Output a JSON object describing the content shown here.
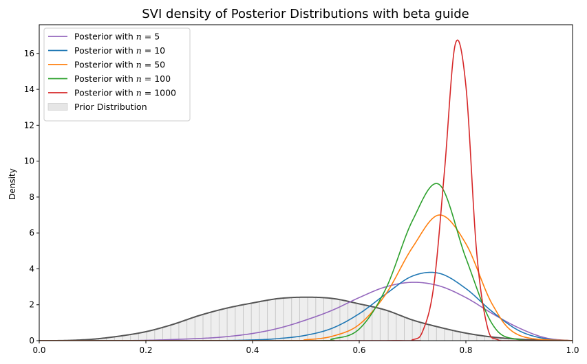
{
  "chart_data": {
    "type": "line",
    "title": "SVI density of Posterior Distributions with beta guide",
    "xlabel": "",
    "ylabel": "Density",
    "xlim": [
      0.0,
      1.0
    ],
    "ylim": [
      0,
      17.6
    ],
    "x_ticks": [
      0.0,
      0.2,
      0.4,
      0.6,
      0.8,
      1.0
    ],
    "x_tick_labels": [
      "0.0",
      "0.2",
      "0.4",
      "0.6",
      "0.8",
      "1.0"
    ],
    "y_ticks": [
      0,
      2,
      4,
      6,
      8,
      10,
      12,
      14,
      16
    ],
    "y_tick_labels": [
      "0",
      "2",
      "4",
      "6",
      "8",
      "10",
      "12",
      "14",
      "16"
    ],
    "legend_position": "top-left",
    "legend": [
      {
        "label": "Posterior with n = 5",
        "text_prefix": "Posterior with ",
        "math": "n",
        "text_suffix": " = 5",
        "color": "#9467bd",
        "kind": "line"
      },
      {
        "label": "Posterior with n = 10",
        "text_prefix": "Posterior with ",
        "math": "n",
        "text_suffix": " = 10",
        "color": "#1f77b4",
        "kind": "line"
      },
      {
        "label": "Posterior with n = 50",
        "text_prefix": "Posterior with ",
        "math": "n",
        "text_suffix": " = 50",
        "color": "#ff7f0e",
        "kind": "line"
      },
      {
        "label": "Posterior with n = 100",
        "text_prefix": "Posterior with ",
        "math": "n",
        "text_suffix": " = 100",
        "color": "#2ca02c",
        "kind": "line"
      },
      {
        "label": "Posterior with n = 1000",
        "text_prefix": "Posterior with ",
        "math": "n",
        "text_suffix": " = 1000",
        "color": "#d62728",
        "kind": "line"
      },
      {
        "label": "Prior Distribution",
        "text_prefix": "Prior Distribution",
        "math": "",
        "text_suffix": "",
        "color": "#e6e6e6",
        "kind": "patch"
      }
    ],
    "prior": {
      "name": "Prior Distribution",
      "fill_color": "#eeeeee",
      "line_color": "#555555",
      "hatch_color": "#c8c8c8",
      "x": [
        0.0,
        0.05,
        0.1,
        0.15,
        0.2,
        0.25,
        0.3,
        0.35,
        0.4,
        0.45,
        0.5,
        0.55,
        0.6,
        0.65,
        0.7,
        0.75,
        0.8,
        0.85,
        0.9,
        0.95,
        1.0
      ],
      "y": [
        0.0,
        0.01,
        0.08,
        0.25,
        0.5,
        0.9,
        1.4,
        1.8,
        2.1,
        2.35,
        2.42,
        2.35,
        2.05,
        1.7,
        1.15,
        0.75,
        0.42,
        0.2,
        0.08,
        0.02,
        0.0
      ]
    },
    "series": [
      {
        "name": "Posterior with n = 5",
        "color": "#9467bd",
        "peak_x": 0.69,
        "peak_y": 3.25,
        "x": [
          0.0,
          0.1,
          0.2,
          0.3,
          0.35,
          0.4,
          0.45,
          0.5,
          0.55,
          0.6,
          0.65,
          0.7,
          0.75,
          0.8,
          0.85,
          0.9,
          0.95,
          1.0
        ],
        "y": [
          0.0,
          0.0,
          0.02,
          0.12,
          0.22,
          0.4,
          0.7,
          1.15,
          1.7,
          2.4,
          3.0,
          3.25,
          3.05,
          2.4,
          1.5,
          0.7,
          0.15,
          0.0
        ]
      },
      {
        "name": "Posterior with n = 10",
        "color": "#1f77b4",
        "peak_x": 0.72,
        "peak_y": 3.85,
        "x": [
          0.0,
          0.3,
          0.4,
          0.45,
          0.5,
          0.55,
          0.6,
          0.65,
          0.7,
          0.75,
          0.8,
          0.85,
          0.9,
          0.95,
          1.0
        ],
        "y": [
          0.0,
          0.0,
          0.04,
          0.12,
          0.3,
          0.7,
          1.5,
          2.6,
          3.6,
          3.75,
          2.9,
          1.6,
          0.55,
          0.1,
          0.0
        ]
      },
      {
        "name": "Posterior with n = 50",
        "color": "#ff7f0e",
        "peak_x": 0.755,
        "peak_y": 7.05,
        "x": [
          0.0,
          0.45,
          0.5,
          0.55,
          0.6,
          0.65,
          0.7,
          0.75,
          0.8,
          0.85,
          0.9,
          1.0
        ],
        "y": [
          0.0,
          0.0,
          0.05,
          0.25,
          0.9,
          2.6,
          5.2,
          7.0,
          5.4,
          2.0,
          0.3,
          0.0
        ]
      },
      {
        "name": "Posterior with n = 100",
        "color": "#2ca02c",
        "peak_x": 0.738,
        "peak_y": 8.95,
        "x": [
          0.0,
          0.5,
          0.55,
          0.6,
          0.65,
          0.7,
          0.75,
          0.8,
          0.85,
          0.9,
          1.0
        ],
        "y": [
          0.0,
          0.0,
          0.1,
          0.65,
          2.9,
          6.7,
          8.7,
          4.6,
          0.9,
          0.05,
          0.0
        ]
      },
      {
        "name": "Posterior with n = 1000",
        "color": "#d62728",
        "peak_x": 0.785,
        "peak_y": 16.8,
        "x": [
          0.0,
          0.65,
          0.7,
          0.72,
          0.74,
          0.76,
          0.78,
          0.8,
          0.82,
          0.84,
          0.86,
          0.9,
          1.0
        ],
        "y": [
          0.0,
          0.0,
          0.05,
          0.6,
          3.1,
          9.5,
          16.5,
          14.2,
          5.0,
          0.8,
          0.05,
          0.0,
          0.0
        ]
      }
    ]
  }
}
